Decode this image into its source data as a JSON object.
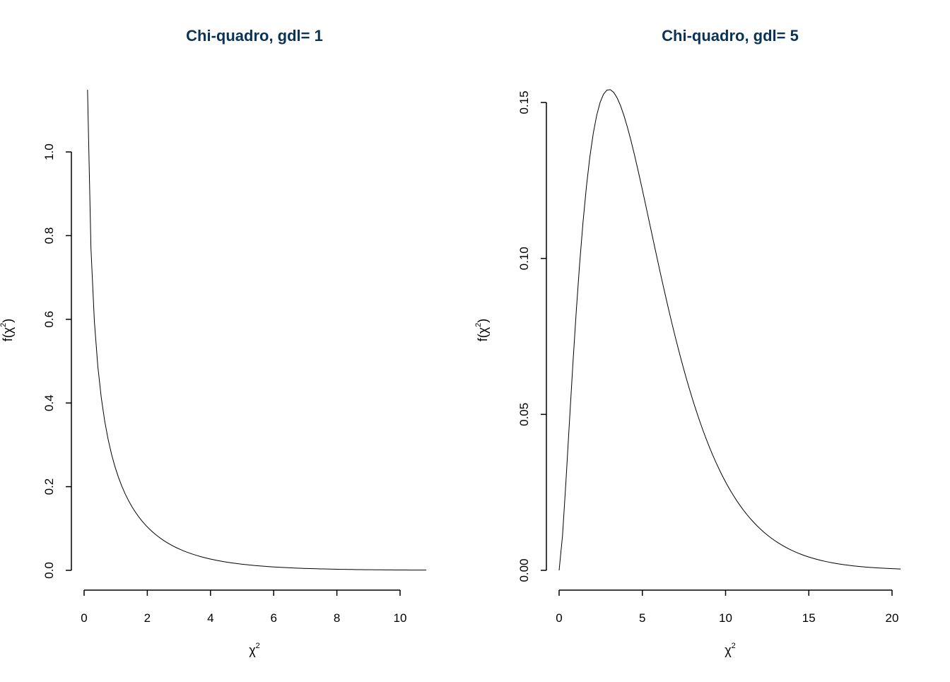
{
  "chart_data": [
    {
      "type": "line",
      "title": "Chi-quadro, gdl= 1",
      "xlabel": "χ",
      "xlabel_sup": "2",
      "ylabel": "f(χ",
      "ylabel_sup": "2",
      "ylabel_end": ")",
      "function": "chi-square density",
      "df": 1,
      "xlim": [
        0,
        10.83
      ],
      "ylim": [
        0,
        1.148
      ],
      "x_ticks": [
        0,
        2,
        4,
        6,
        8,
        10
      ],
      "x_tick_labels": [
        "0",
        "2",
        "4",
        "6",
        "8",
        "10"
      ],
      "y_ticks": [
        0,
        0.2,
        0.4,
        0.6,
        0.8,
        1.0
      ],
      "y_tick_labels": [
        "0.0",
        "0.2",
        "0.4",
        "0.6",
        "0.8",
        "1.0"
      ],
      "grid": false,
      "line_color": "#000000"
    },
    {
      "type": "line",
      "title": "Chi-quadro, gdl= 5",
      "xlabel": "χ",
      "xlabel_sup": "2",
      "ylabel": "f(χ",
      "ylabel_sup": "2",
      "ylabel_end": ")",
      "function": "chi-square density",
      "df": 5,
      "xlim": [
        0,
        20.52
      ],
      "ylim": [
        0,
        0.154
      ],
      "x_ticks": [
        0,
        5,
        10,
        15,
        20
      ],
      "x_tick_labels": [
        "0",
        "5",
        "10",
        "15",
        "20"
      ],
      "y_ticks": [
        0,
        0.05,
        0.1,
        0.15
      ],
      "y_tick_labels": [
        "0.00",
        "0.05",
        "0.10",
        "0.15"
      ],
      "grid": false,
      "line_color": "#000000"
    }
  ],
  "colors": {
    "title": "#0a3358",
    "axes": "#000000"
  }
}
